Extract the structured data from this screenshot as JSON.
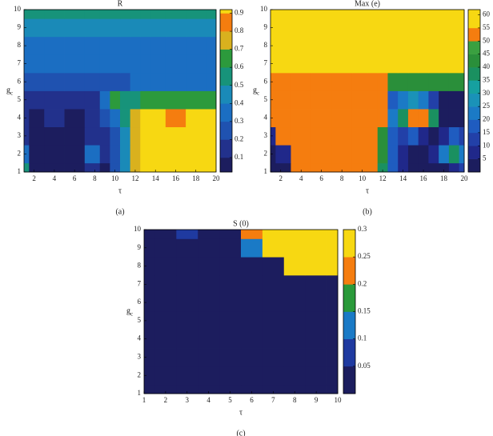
{
  "chart_data": [
    {
      "type": "contour",
      "title": "R",
      "xlabel": "τ",
      "ylabel": {
        "text": "g",
        "subscript": "c"
      },
      "caption": "(a)",
      "xlim": [
        1,
        20
      ],
      "ylim": [
        1,
        10
      ],
      "xticks": [
        2,
        4,
        6,
        8,
        10,
        12,
        14,
        16,
        18,
        20
      ],
      "yticks": [
        1,
        2,
        3,
        4,
        5,
        6,
        7,
        8,
        9,
        10
      ],
      "zlim": [
        0.02,
        0.92
      ],
      "zticks": [
        0.1,
        0.2,
        0.3,
        0.4,
        0.5,
        0.6,
        0.7,
        0.8,
        0.9
      ],
      "colors": [
        "#1c1d5e",
        "#22318c",
        "#1f52b0",
        "#1b6ec2",
        "#1a8ab8",
        "#17937a",
        "#2c9a3c",
        "#d9b11e",
        "#f57d0f",
        "#f7d812"
      ],
      "x": [
        1,
        2,
        4,
        6,
        8,
        9,
        10,
        11,
        12,
        13,
        14,
        16,
        18,
        20
      ],
      "y": [
        1,
        2,
        3,
        4,
        5,
        6,
        7,
        8,
        9,
        10
      ],
      "z": [
        [
          0.55,
          0.05,
          0.05,
          0.05,
          0.15,
          0.05,
          0.25,
          0.45,
          0.75,
          0.91,
          0.91,
          0.91,
          0.91,
          0.91
        ],
        [
          0.35,
          0.05,
          0.05,
          0.05,
          0.35,
          0.15,
          0.25,
          0.45,
          0.75,
          0.91,
          0.91,
          0.91,
          0.91,
          0.91
        ],
        [
          0.15,
          0.05,
          0.05,
          0.05,
          0.15,
          0.15,
          0.25,
          0.45,
          0.75,
          0.91,
          0.91,
          0.91,
          0.91,
          0.91
        ],
        [
          0.15,
          0.05,
          0.15,
          0.05,
          0.15,
          0.25,
          0.35,
          0.55,
          0.75,
          0.91,
          0.91,
          0.85,
          0.91,
          0.91
        ],
        [
          0.15,
          0.15,
          0.15,
          0.15,
          0.15,
          0.35,
          0.65,
          0.55,
          0.55,
          0.65,
          0.65,
          0.65,
          0.65,
          0.65
        ],
        [
          0.25,
          0.25,
          0.25,
          0.25,
          0.25,
          0.25,
          0.25,
          0.25,
          0.35,
          0.35,
          0.35,
          0.35,
          0.35,
          0.35
        ],
        [
          0.35,
          0.35,
          0.35,
          0.35,
          0.35,
          0.35,
          0.35,
          0.35,
          0.35,
          0.35,
          0.35,
          0.35,
          0.35,
          0.35
        ],
        [
          0.35,
          0.35,
          0.35,
          0.35,
          0.35,
          0.35,
          0.35,
          0.35,
          0.35,
          0.35,
          0.35,
          0.35,
          0.35,
          0.35
        ],
        [
          0.45,
          0.45,
          0.45,
          0.45,
          0.45,
          0.45,
          0.45,
          0.45,
          0.45,
          0.45,
          0.45,
          0.45,
          0.45,
          0.45
        ],
        [
          0.55,
          0.55,
          0.55,
          0.55,
          0.55,
          0.55,
          0.55,
          0.55,
          0.55,
          0.55,
          0.55,
          0.55,
          0.55,
          0.55
        ]
      ]
    },
    {
      "type": "contour",
      "title": "Max (e)",
      "xlabel": "τ",
      "ylabel": {
        "text": "g",
        "subscript": "c"
      },
      "caption": "(b)",
      "xlim": [
        1,
        20
      ],
      "ylim": [
        1,
        10
      ],
      "xticks": [
        2,
        4,
        6,
        8,
        10,
        12,
        14,
        16,
        18,
        20
      ],
      "yticks": [
        1,
        2,
        3,
        4,
        5,
        6,
        7,
        8,
        9,
        10
      ],
      "zlim": [
        0,
        62
      ],
      "zticks": [
        5,
        10,
        15,
        20,
        25,
        30,
        35,
        40,
        45,
        50,
        55,
        60
      ],
      "colors": [
        "#1c1d5e",
        "#20288a",
        "#2240a8",
        "#1f5cc0",
        "#1b7ac6",
        "#1a92b8",
        "#16a0a0",
        "#1a9060",
        "#2a8f3a",
        "#3aa040",
        "#f57d0f",
        "#f7d812",
        "#f7d812"
      ],
      "x": [
        1,
        2,
        4,
        6,
        8,
        10,
        11,
        12,
        13,
        14,
        15,
        16,
        17,
        18,
        19,
        20
      ],
      "y": [
        1,
        2,
        3,
        4,
        5,
        6,
        7,
        8,
        9,
        10
      ],
      "z": [
        [
          3,
          5,
          52,
          52,
          52,
          52,
          52,
          40,
          20,
          10,
          5,
          3,
          3,
          3,
          10,
          15
        ],
        [
          3,
          10,
          52,
          52,
          52,
          52,
          52,
          45,
          20,
          10,
          5,
          3,
          10,
          25,
          38,
          25
        ],
        [
          10,
          52,
          52,
          52,
          52,
          52,
          52,
          45,
          20,
          15,
          20,
          10,
          5,
          10,
          20,
          15
        ],
        [
          52,
          52,
          52,
          52,
          52,
          52,
          52,
          52,
          25,
          40,
          52,
          52,
          40,
          5,
          3,
          3
        ],
        [
          52,
          52,
          52,
          52,
          52,
          52,
          52,
          52,
          20,
          25,
          30,
          25,
          15,
          5,
          3,
          3
        ],
        [
          52,
          52,
          52,
          52,
          52,
          52,
          52,
          52,
          45,
          45,
          45,
          45,
          45,
          45,
          45,
          45
        ],
        [
          58,
          58,
          58,
          58,
          58,
          58,
          58,
          58,
          58,
          58,
          58,
          58,
          58,
          58,
          58,
          58
        ],
        [
          58,
          58,
          58,
          58,
          58,
          58,
          58,
          58,
          58,
          58,
          58,
          58,
          58,
          58,
          58,
          58
        ],
        [
          58,
          58,
          58,
          58,
          58,
          58,
          58,
          58,
          58,
          58,
          58,
          58,
          58,
          58,
          58,
          58
        ],
        [
          58,
          58,
          58,
          58,
          58,
          58,
          58,
          58,
          58,
          58,
          58,
          58,
          58,
          58,
          58,
          58
        ]
      ]
    },
    {
      "type": "contour",
      "title": "S (0)",
      "xlabel": "τ",
      "ylabel": {
        "text": "g",
        "subscript": "c"
      },
      "caption": "(c)",
      "xlim": [
        1,
        10
      ],
      "ylim": [
        1,
        10
      ],
      "xticks": [
        1,
        2,
        3,
        4,
        5,
        6,
        7,
        8,
        9,
        10
      ],
      "yticks": [
        1,
        2,
        3,
        4,
        5,
        6,
        7,
        8,
        9,
        10
      ],
      "zlim": [
        0,
        0.3
      ],
      "zticks": [
        0.05,
        0.1,
        0.15,
        0.2,
        0.25,
        0.3
      ],
      "colors": [
        "#1c1d5e",
        "#1f3aa0",
        "#1a7ac6",
        "#2a9a3a",
        "#f57d0f",
        "#f7d812",
        "#f7d812"
      ],
      "x": [
        1,
        2,
        3,
        4,
        5,
        6,
        7,
        8,
        9,
        10
      ],
      "y": [
        1,
        2,
        3,
        4,
        5,
        6,
        7,
        8,
        9,
        10
      ],
      "z": [
        [
          0.02,
          0.02,
          0.02,
          0.02,
          0.02,
          0.02,
          0.02,
          0.02,
          0.02,
          0.02
        ],
        [
          0.02,
          0.02,
          0.02,
          0.02,
          0.02,
          0.02,
          0.02,
          0.02,
          0.02,
          0.02
        ],
        [
          0.02,
          0.02,
          0.02,
          0.02,
          0.02,
          0.02,
          0.02,
          0.02,
          0.02,
          0.02
        ],
        [
          0.02,
          0.02,
          0.02,
          0.02,
          0.02,
          0.02,
          0.02,
          0.02,
          0.02,
          0.02
        ],
        [
          0.02,
          0.02,
          0.02,
          0.02,
          0.02,
          0.02,
          0.02,
          0.02,
          0.02,
          0.02
        ],
        [
          0.02,
          0.02,
          0.02,
          0.02,
          0.02,
          0.02,
          0.02,
          0.02,
          0.02,
          0.02
        ],
        [
          0.02,
          0.02,
          0.02,
          0.02,
          0.02,
          0.02,
          0.02,
          0.02,
          0.02,
          0.02
        ],
        [
          0.02,
          0.02,
          0.02,
          0.02,
          0.02,
          0.02,
          0.02,
          0.29,
          0.29,
          0.29
        ],
        [
          0.02,
          0.02,
          0.02,
          0.02,
          0.02,
          0.15,
          0.29,
          0.29,
          0.29,
          0.29
        ],
        [
          0.02,
          0.02,
          0.1,
          0.02,
          0.02,
          0.22,
          0.29,
          0.29,
          0.29,
          0.29
        ]
      ]
    }
  ]
}
